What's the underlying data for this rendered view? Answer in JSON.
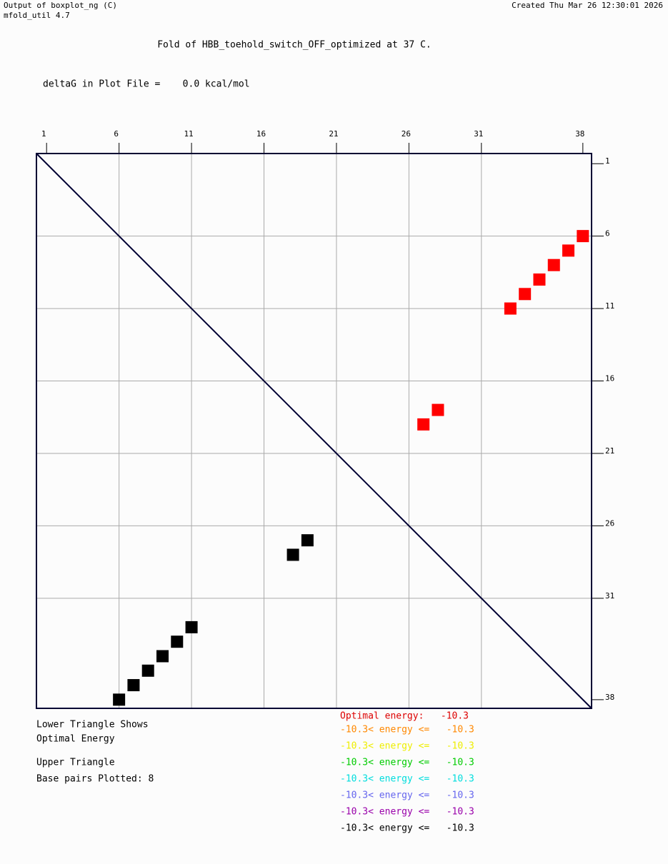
{
  "header": {
    "left1": "Output of boxplot_ng (C)",
    "left2": "mfold_util 4.7",
    "right": "Created Thu Mar 26 12:30:01 2026"
  },
  "chart_data": {
    "type": "dotplot",
    "title": "Fold of HBB_toehold_switch_OFF_optimized at 37 C.",
    "subtitle": "deltaG in Plot File =    0.0 kcal/mol",
    "xlim": [
      0.3,
      38.6
    ],
    "ylim": [
      0.3,
      38.6
    ],
    "y_inverted": true,
    "grid": true,
    "xticks": [
      1,
      6,
      11,
      16,
      21,
      26,
      31,
      38
    ],
    "yticks": [
      1,
      6,
      11,
      16,
      21,
      26,
      31,
      38
    ],
    "series": [
      {
        "color": "#ff0000",
        "x": [
          38,
          37,
          36,
          35,
          34,
          33,
          28,
          27
        ],
        "values": [
          6,
          7,
          8,
          9,
          10,
          11,
          18,
          19
        ]
      },
      {
        "color": "#000000",
        "x": [
          6,
          7,
          8,
          9,
          10,
          11,
          18,
          19
        ],
        "values": [
          38,
          37,
          36,
          35,
          34,
          33,
          28,
          27
        ]
      }
    ],
    "notes": [
      "Lower Triangle Shows",
      "Optimal Energy",
      "Upper Triangle",
      "Base pairs Plotted: 8"
    ],
    "energy_legend": [
      {
        "text": "Optimal energy:   -10.3",
        "color": "#dd0000"
      },
      {
        "text": "-10.3< energy <=   -10.3",
        "color": "#ff8800"
      },
      {
        "text": "-10.3< energy <=   -10.3",
        "color": "#eeee00"
      },
      {
        "text": "-10.3< energy <=   -10.3",
        "color": "#00cc00"
      },
      {
        "text": "-10.3< energy <=   -10.3",
        "color": "#00dddd"
      },
      {
        "text": "-10.3< energy <=   -10.3",
        "color": "#6666ee"
      },
      {
        "text": "-10.3< energy <=   -10.3",
        "color": "#9900aa"
      },
      {
        "text": "-10.3< energy <=   -10.3",
        "color": "#000000"
      }
    ]
  }
}
